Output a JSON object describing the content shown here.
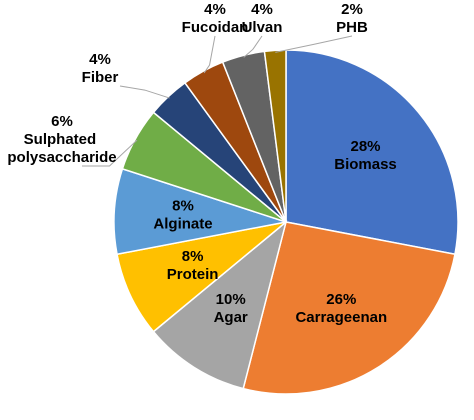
{
  "chart_data": {
    "type": "pie",
    "categories": [
      "Biomass",
      "Carrageenan",
      "Agar",
      "Protein",
      "Alginate",
      "Sulphated polysaccharide",
      "Fiber",
      "Fucoidan",
      "Ulvan",
      "PHB"
    ],
    "values": [
      28,
      26,
      10,
      8,
      8,
      6,
      4,
      4,
      4,
      2
    ],
    "value_labels": [
      "28%",
      "26%",
      "10%",
      "8%",
      "8%",
      "6%",
      "4%",
      "4%",
      "4%",
      "2%"
    ],
    "colors": [
      "#4472c4",
      "#ed7d31",
      "#a5a5a5",
      "#ffc000",
      "#5b9bd5",
      "#70ad47",
      "#264478",
      "#9e480e",
      "#636363",
      "#997300"
    ]
  }
}
